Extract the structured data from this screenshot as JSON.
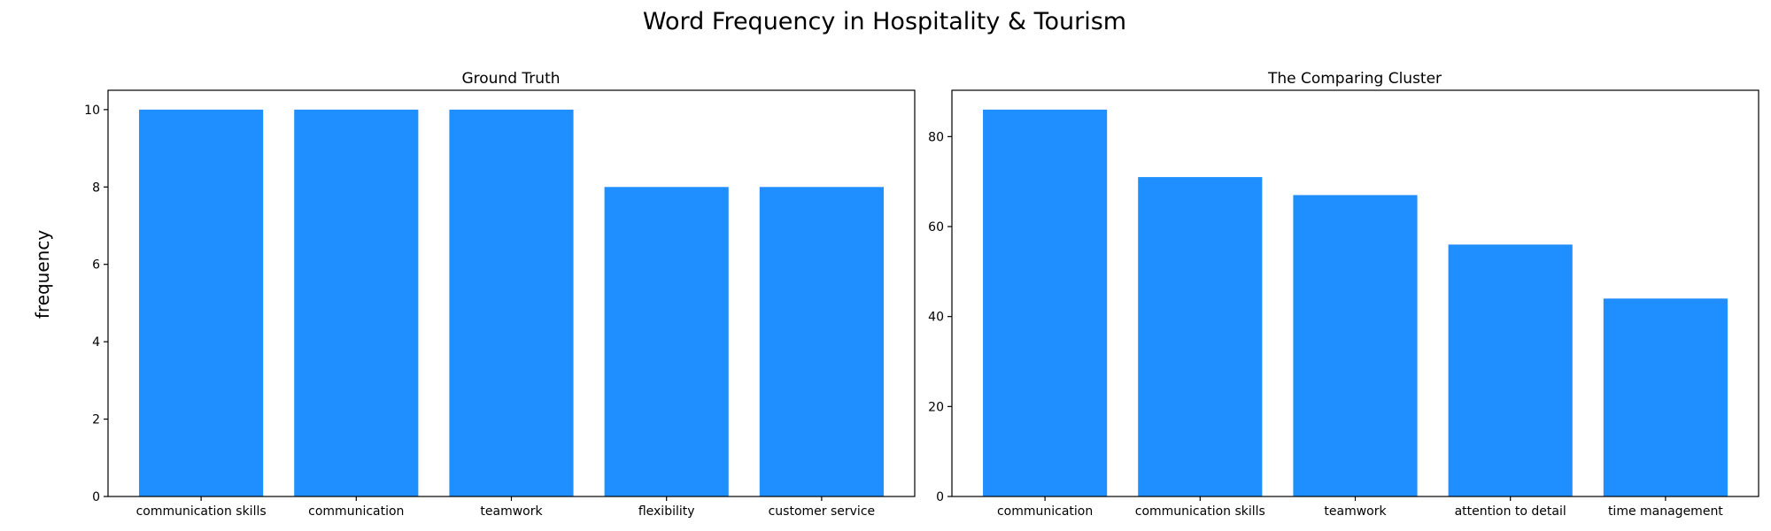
{
  "figure": {
    "title": "Word Frequency in Hospitality & Tourism",
    "ylabel": "frequency"
  },
  "colors": {
    "bar": "#1f8fff"
  },
  "chart_data": [
    {
      "type": "bar",
      "title": "Ground Truth",
      "xlabel": "",
      "ylabel": "frequency",
      "categories": [
        "communication skills",
        "communication",
        "teamwork",
        "flexibility",
        "customer service"
      ],
      "values": [
        10,
        10,
        10,
        8,
        8
      ],
      "ylim": [
        0,
        10.5
      ],
      "yticks": [
        0,
        2,
        4,
        6,
        8,
        10
      ],
      "grid": false,
      "legend": "none"
    },
    {
      "type": "bar",
      "title": "The Comparing Cluster",
      "xlabel": "",
      "ylabel": "",
      "categories": [
        "communication",
        "communication skills",
        "teamwork",
        "attention to detail",
        "time management"
      ],
      "values": [
        86,
        71,
        67,
        56,
        44
      ],
      "ylim": [
        0,
        90.3
      ],
      "yticks": [
        0,
        20,
        40,
        60,
        80
      ],
      "grid": false,
      "legend": "none"
    }
  ]
}
